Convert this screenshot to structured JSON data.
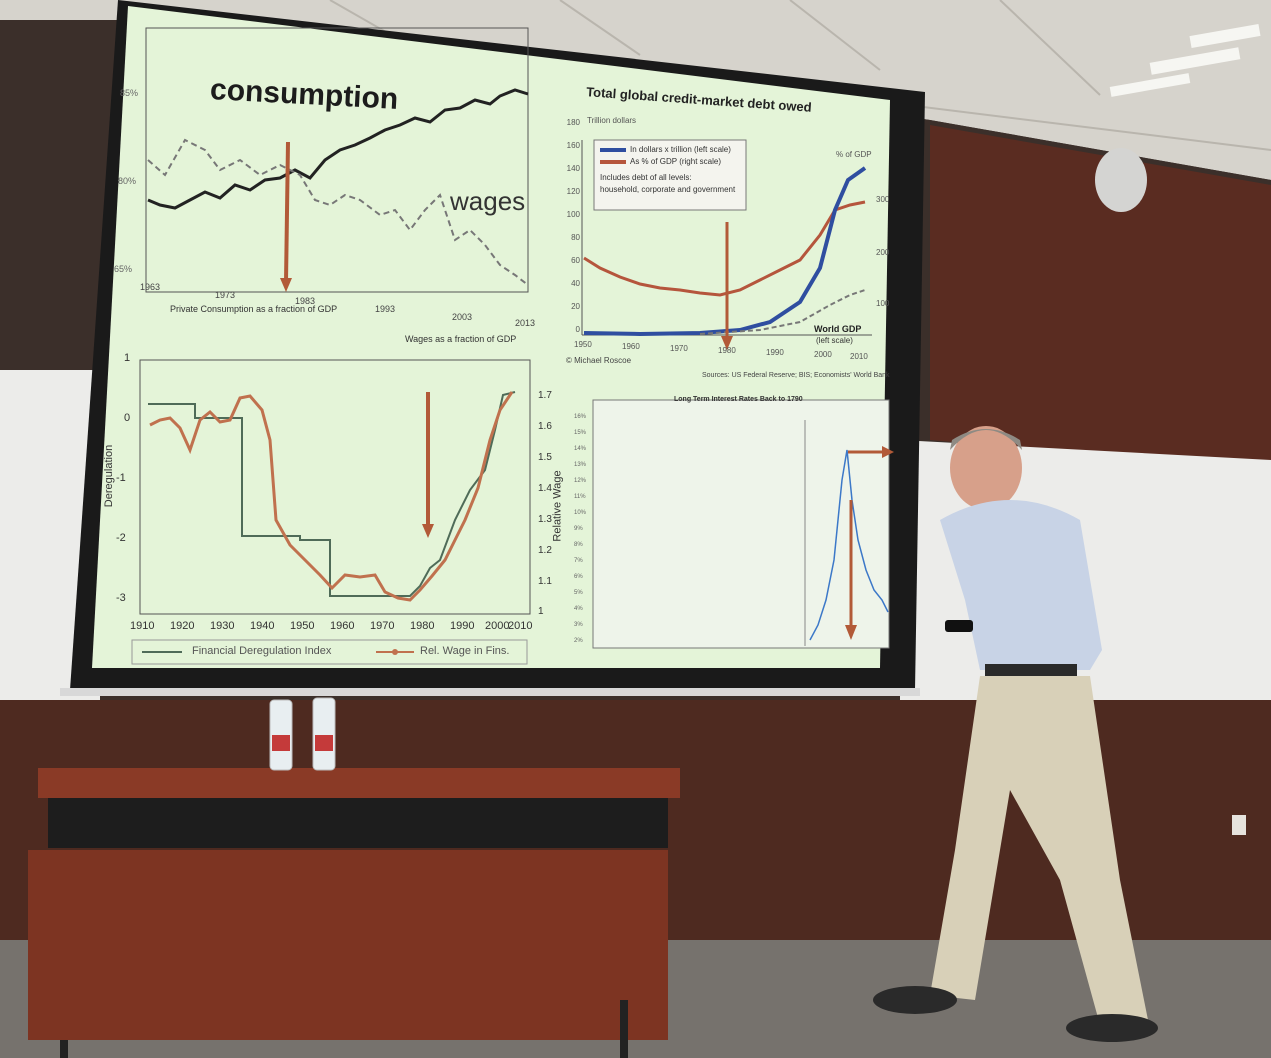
{
  "slide": {
    "panel1": {
      "labels": {
        "consumption": "consumption",
        "wages": "wages",
        "y_tick_top": "85%",
        "y_tick_mid": "80%",
        "y_tick_low": "65%",
        "legend_consumption": "Private Consumption as a fraction of GDP",
        "legend_wages": "Wages as a fraction of GDP"
      },
      "x_ticks": [
        "1963",
        "1973",
        "1983",
        "1993",
        "2003",
        "2013"
      ]
    },
    "panel2": {
      "title": "Total global credit-market debt owed",
      "subtitle": "Trillion dollars",
      "right_axis_title": "% of GDP",
      "legend_blue": "In dollars x trillion (left scale)",
      "legend_red": "As % of GDP (right scale)",
      "legend_note_1": "Includes debt of all levels:",
      "legend_note_2": "household, corporate and government",
      "world_gdp_1": "World GDP",
      "world_gdp_2": "(left scale)",
      "credit": "© Michael Roscoe",
      "sources": "Sources: US Federal Reserve; BIS; Economists' World Bank",
      "y_ticks": [
        "180",
        "160",
        "140",
        "120",
        "100",
        "80",
        "60",
        "40",
        "20",
        "0"
      ],
      "right_ticks": [
        "300",
        "200",
        "100"
      ],
      "x_ticks": [
        "1950",
        "1960",
        "1970",
        "1980",
        "1990",
        "2000",
        "2010"
      ]
    },
    "panel3": {
      "y_left_label": "Deregulation",
      "y_right_label": "Relative Wage",
      "y_left_ticks": [
        "1",
        "0",
        "-1",
        "-2",
        "-3"
      ],
      "y_right_ticks": [
        "1.7",
        "1.6",
        "1.5",
        "1.4",
        "1.3",
        "1.2",
        "1.1",
        "1"
      ],
      "x_ticks": [
        "1910",
        "1920",
        "1930",
        "1940",
        "1950",
        "1960",
        "1970",
        "1980",
        "1990",
        "2000",
        "2010"
      ],
      "legend_deregulation": "Financial Deregulation Index",
      "legend_wage": "Rel. Wage in Fins."
    },
    "panel4": {
      "title": "Long Term Interest Rates Back to 1790",
      "y_ticks": [
        "16%",
        "15%",
        "14%",
        "13%",
        "12%",
        "11%",
        "10%",
        "9%",
        "8%",
        "7%",
        "6%",
        "5%",
        "4%",
        "3%",
        "2%"
      ]
    }
  },
  "colors": {
    "slide_bg": "#e4f4d8",
    "arrow": "#b25a38",
    "blue_series": "#2f4ea0",
    "red_series": "#b5553c",
    "wall_wood": "#5a2f22",
    "ceiling": "#d9d6cf",
    "floor": "#75716c",
    "desk_top": "#8a3a26"
  }
}
